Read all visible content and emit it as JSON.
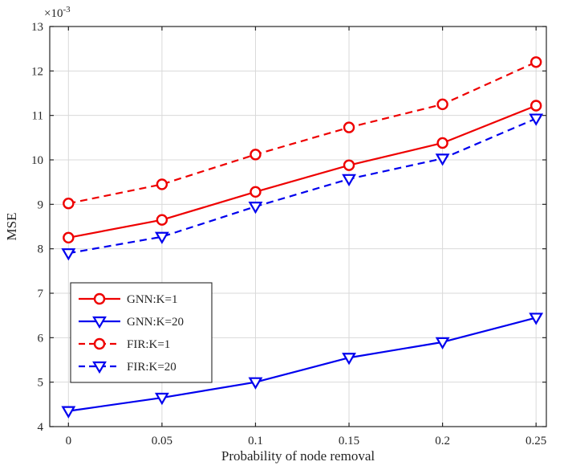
{
  "figure": {
    "description": "MATLAB-style line plot of MSE versus probability of node removal for GNN and FIR filters"
  },
  "chart_data": {
    "type": "line",
    "title": "",
    "xlabel": "Probability of node removal",
    "ylabel": "MSE",
    "y_multiplier": {
      "prefix": "×10",
      "exponent": "-3"
    },
    "x": [
      0,
      0.05,
      0.1,
      0.15,
      0.2,
      0.25
    ],
    "xticks": [
      0,
      0.05,
      0.1,
      0.15,
      0.2,
      0.25
    ],
    "xtick_labels": [
      "0",
      "0.05",
      "0.1",
      "0.15",
      "0.2",
      "0.25"
    ],
    "yticks": [
      4,
      5,
      6,
      7,
      8,
      9,
      10,
      11,
      12,
      13
    ],
    "ytick_labels": [
      "4",
      "5",
      "6",
      "7",
      "8",
      "9",
      "10",
      "11",
      "12",
      "13"
    ],
    "xlim": [
      -0.01,
      0.2555
    ],
    "ylim": [
      4,
      13
    ],
    "grid": true,
    "legend_position": "left-middle",
    "series": [
      {
        "name": "GNN:K=1",
        "color": "#ee0000",
        "dash": "solid",
        "marker": "circle",
        "values": [
          8.25,
          8.65,
          9.28,
          9.88,
          10.38,
          11.22
        ]
      },
      {
        "name": "GNN:K=20",
        "color": "#0000ee",
        "dash": "solid",
        "marker": "triangle-down",
        "values": [
          4.35,
          4.65,
          5.0,
          5.55,
          5.9,
          6.45
        ]
      },
      {
        "name": "FIR:K=1",
        "color": "#ee0000",
        "dash": "dashed",
        "marker": "circle",
        "values": [
          9.02,
          9.45,
          10.12,
          10.73,
          11.25,
          12.2
        ]
      },
      {
        "name": "FIR:K=20",
        "color": "#0000ee",
        "dash": "dashed",
        "marker": "triangle-down",
        "values": [
          7.9,
          8.27,
          8.95,
          9.57,
          10.03,
          10.93
        ]
      }
    ],
    "style": {
      "axis_color": "#262626",
      "grid_color": "#d9d9d9",
      "background": "#ffffff",
      "legend_border": "#262626",
      "tick_font_px": 15,
      "label_font_px": 17,
      "legend_font_px": 15
    }
  }
}
